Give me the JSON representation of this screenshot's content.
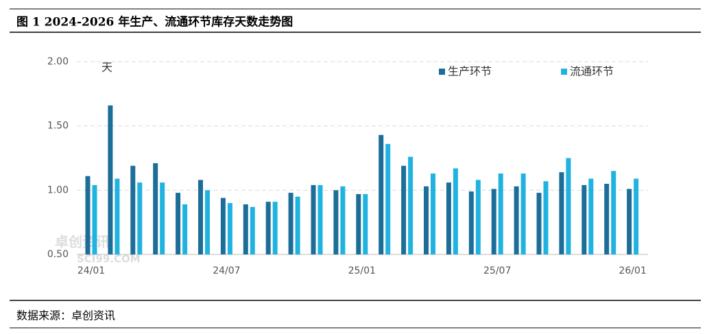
{
  "header": {
    "title": "图 1 2024-2026 年生产、流通环节库存天数走势图"
  },
  "chart_data": {
    "type": "bar",
    "unit": "天",
    "watermark": "卓创资讯",
    "watermark_url": "SCI99.COM",
    "categories": [
      "24/01",
      null,
      null,
      null,
      null,
      null,
      "24/07",
      null,
      null,
      null,
      null,
      null,
      "25/01",
      null,
      null,
      null,
      null,
      null,
      "25/07",
      null,
      null,
      null,
      null,
      null,
      "26/01"
    ],
    "series": [
      {
        "name": "生产环节",
        "color": "#1c6e98",
        "values": [
          1.11,
          1.66,
          1.19,
          1.21,
          0.98,
          1.08,
          0.94,
          0.89,
          0.91,
          0.98,
          1.04,
          1.0,
          0.97,
          1.43,
          1.19,
          1.03,
          1.06,
          0.99,
          1.01,
          1.03,
          0.98,
          1.14,
          1.04,
          1.05,
          1.01
        ]
      },
      {
        "name": "流通环节",
        "color": "#21b3e0",
        "values": [
          1.04,
          1.09,
          1.06,
          1.06,
          0.89,
          1.0,
          0.9,
          0.87,
          0.91,
          0.95,
          1.04,
          1.03,
          0.97,
          1.36,
          1.26,
          1.13,
          1.17,
          1.08,
          1.13,
          1.13,
          1.07,
          1.25,
          1.09,
          1.15,
          1.09
        ]
      }
    ],
    "ylim": [
      0.5,
      2.0
    ],
    "yticks": [
      {
        "value": 0.5,
        "label": "0.50"
      },
      {
        "value": 1.0,
        "label": "1.00"
      },
      {
        "value": 1.5,
        "label": "1.50"
      },
      {
        "value": 2.0,
        "label": "2.00"
      }
    ],
    "grid": true,
    "legend": "top-right"
  },
  "footer": {
    "source": "数据来源：卓创资讯"
  }
}
